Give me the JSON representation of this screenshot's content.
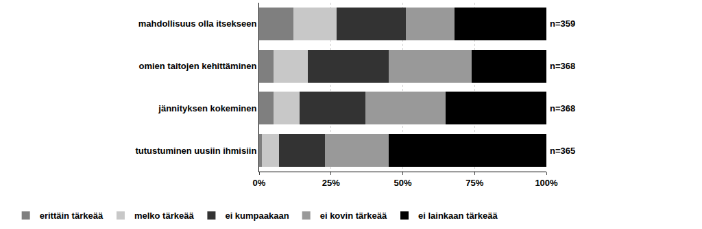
{
  "chart_data": {
    "type": "bar",
    "orientation": "horizontal",
    "stacked": true,
    "categories": [
      "mahdollisuus olla itsekseen",
      "omien taitojen kehittäminen",
      "jännityksen kokeminen",
      "tutustuminen uusiin ihmisiin"
    ],
    "series": [
      {
        "name": "erittäin tärkeää",
        "color": "#7f7f7f",
        "values": [
          12,
          5,
          5,
          1
        ]
      },
      {
        "name": "melko tärkeää",
        "color": "#c8c8c8",
        "values": [
          15,
          12,
          9,
          6
        ]
      },
      {
        "name": "ei kumpaakaan",
        "color": "#333333",
        "values": [
          24,
          28,
          23,
          16
        ]
      },
      {
        "name": "ei kovin tärkeää",
        "color": "#999999",
        "values": [
          17,
          29,
          28,
          22
        ]
      },
      {
        "name": "ei lainkaan tärkeää",
        "color": "#000000",
        "values": [
          32,
          26,
          35,
          55
        ]
      }
    ],
    "annotations": [
      "n=359",
      "n=368",
      "n=368",
      "n=365"
    ],
    "xlim": [
      0,
      100
    ],
    "xticks": [
      {
        "value": 0,
        "label": "0%"
      },
      {
        "value": 25,
        "label": "25%"
      },
      {
        "value": 50,
        "label": "50%"
      },
      {
        "value": 75,
        "label": "75%"
      },
      {
        "value": 100,
        "label": "100%"
      }
    ],
    "grid": true,
    "legend": "bottom"
  }
}
